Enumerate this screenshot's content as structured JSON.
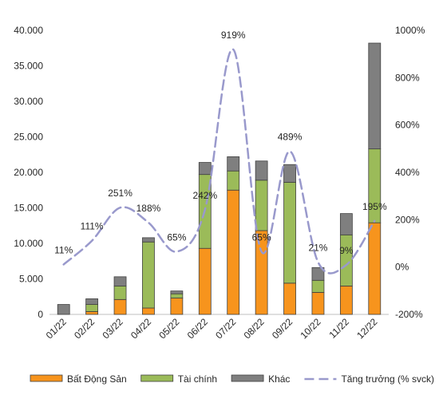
{
  "chart_data": {
    "type": "bar",
    "stacked": true,
    "categories": [
      "01/22",
      "02/22",
      "03/22",
      "04/22",
      "05/22",
      "06/22",
      "07/22",
      "08/22",
      "09/22",
      "10/22",
      "11/22",
      "12/22"
    ],
    "series": [
      {
        "name": "Bất Động Sản",
        "color": "#f7941d",
        "values": [
          0,
          400,
          2100,
          900,
          2300,
          9300,
          17500,
          11800,
          4400,
          3100,
          4000,
          12900
        ]
      },
      {
        "name": "Tài chính",
        "color": "#9bbb59",
        "values": [
          0,
          1000,
          1900,
          9300,
          600,
          10400,
          2700,
          7100,
          14200,
          1700,
          7200,
          10400
        ]
      },
      {
        "name": "Khác",
        "color": "#7f7f7f",
        "values": [
          1400,
          800,
          1300,
          600,
          400,
          1700,
          2000,
          2700,
          2500,
          1800,
          3000,
          14900
        ]
      }
    ],
    "line_series": {
      "name": "Tăng trưởng (% svck)",
      "color": "#9999cc",
      "values": [
        11,
        111,
        251,
        188,
        65,
        242,
        919,
        65,
        489,
        21,
        9,
        195
      ],
      "labels": [
        "11%",
        "111%",
        "251%",
        "188%",
        "65%",
        "242%",
        "919%",
        "65%",
        "489%",
        "21%",
        "9%",
        "195%"
      ]
    },
    "y_left": {
      "min": 0,
      "max": 40000,
      "ticks": [
        "0",
        "5.000",
        "10.000",
        "15.000",
        "20.000",
        "25.000",
        "30.000",
        "35.000",
        "40.000"
      ]
    },
    "y_right": {
      "min": -200,
      "max": 1000,
      "ticks": [
        "-200%",
        "0%",
        "200%",
        "400%",
        "600%",
        "800%",
        "1000%"
      ]
    },
    "legend_position": "bottom",
    "grid": false
  }
}
